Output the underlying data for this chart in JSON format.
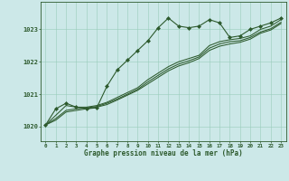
{
  "bg_color": "#cce8e8",
  "grid_color": "#99ccbb",
  "line_color": "#2d5a2d",
  "marker_color": "#2d5a2d",
  "xlabel": "Graphe pression niveau de la mer (hPa)",
  "xlabel_color": "#2d5a2d",
  "tick_color": "#2d5a2d",
  "xlim": [
    -0.5,
    23.5
  ],
  "ylim": [
    1019.55,
    1023.85
  ],
  "yticks": [
    1020,
    1021,
    1022,
    1023
  ],
  "xticks": [
    0,
    1,
    2,
    3,
    4,
    5,
    6,
    7,
    8,
    9,
    10,
    11,
    12,
    13,
    14,
    15,
    16,
    17,
    18,
    19,
    20,
    21,
    22,
    23
  ],
  "series1_x": [
    0,
    1,
    2,
    3,
    4,
    5,
    6,
    7,
    8,
    9,
    10,
    11,
    12,
    13,
    14,
    15,
    16,
    17,
    18,
    19,
    20,
    21,
    22,
    23
  ],
  "series1_y": [
    1020.05,
    1020.55,
    1020.72,
    1020.6,
    1020.55,
    1020.58,
    1021.25,
    1021.75,
    1022.05,
    1022.35,
    1022.65,
    1023.05,
    1023.35,
    1023.1,
    1023.05,
    1023.1,
    1023.3,
    1023.2,
    1022.75,
    1022.8,
    1023.0,
    1023.1,
    1023.2,
    1023.35
  ],
  "series2_x": [
    0,
    1,
    2,
    3,
    4,
    5,
    6,
    7,
    8,
    9,
    10,
    11,
    12,
    13,
    14,
    15,
    16,
    17,
    18,
    19,
    20,
    21,
    22,
    23
  ],
  "series2_y": [
    1020.05,
    1020.35,
    1020.65,
    1020.6,
    1020.6,
    1020.65,
    1020.75,
    1020.9,
    1021.05,
    1021.2,
    1021.45,
    1021.65,
    1021.85,
    1022.0,
    1022.1,
    1022.2,
    1022.5,
    1022.62,
    1022.68,
    1022.72,
    1022.8,
    1023.0,
    1023.1,
    1023.3
  ],
  "series3_x": [
    0,
    1,
    2,
    3,
    4,
    5,
    6,
    7,
    8,
    9,
    10,
    11,
    12,
    13,
    14,
    15,
    16,
    17,
    18,
    19,
    20,
    21,
    22,
    23
  ],
  "series3_y": [
    1020.05,
    1020.25,
    1020.5,
    1020.55,
    1020.58,
    1020.62,
    1020.72,
    1020.85,
    1021.0,
    1021.15,
    1021.38,
    1021.58,
    1021.78,
    1021.93,
    1022.03,
    1022.15,
    1022.42,
    1022.55,
    1022.62,
    1022.65,
    1022.75,
    1022.92,
    1023.02,
    1023.22
  ],
  "series4_x": [
    0,
    1,
    2,
    3,
    4,
    5,
    6,
    7,
    8,
    9,
    10,
    11,
    12,
    13,
    14,
    15,
    16,
    17,
    18,
    19,
    20,
    21,
    22,
    23
  ],
  "series4_y": [
    1020.05,
    1020.2,
    1020.45,
    1020.5,
    1020.55,
    1020.6,
    1020.68,
    1020.82,
    1020.97,
    1021.12,
    1021.32,
    1021.52,
    1021.72,
    1021.87,
    1021.97,
    1022.1,
    1022.35,
    1022.48,
    1022.55,
    1022.6,
    1022.7,
    1022.88,
    1022.98,
    1023.18
  ]
}
